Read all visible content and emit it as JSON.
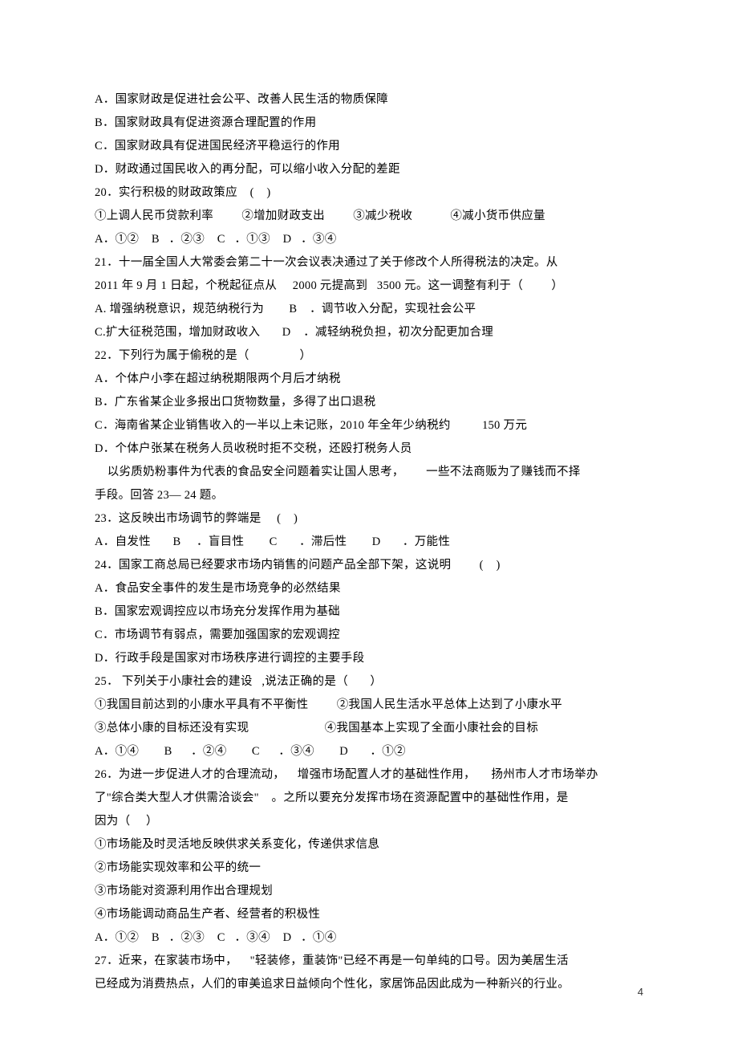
{
  "q19": {
    "A": "A．国家财政是促进社会公平、改善人民生活的物质保障",
    "B": "B．国家财政具有促进资源合理配置的作用",
    "C": "C．国家财政具有促进国民经济平稳运行的作用",
    "D": "D．财政通过国民收入的再分配，可以缩小收入分配的差距"
  },
  "q20": {
    "stem": "20．实行积极的财政政策应    (    )",
    "items": "①上调人民币贷款利率         ②增加财政支出         ③减少税收            ④减小货币供应量",
    "opts": "A．①②    B   ．②③    C   ．①③    D   ．③④"
  },
  "q21": {
    "l1": "21．十一届全国人大常委会第二十一次会议表决通过了关于修改个人所得税法的决定。从",
    "l2": "2011 年 9 月 1 日起，个税起征点从     2000 元提高到   3500 元。这一调整有利于（         ）",
    "l3": "A. 增强纳税意识，规范纳税行为        B    ．调节收入分配，实现社会公平",
    "l4": "C.扩大征税范围，增加财政收入       D    ．减轻纳税负担，初次分配更加合理"
  },
  "q22": {
    "stem": "22．下列行为属于偷税的是（                ）",
    "A": "A．个体户小李在超过纳税期限两个月后才纳税",
    "B": "B．广东省某企业多报出口货物数量，多得了出口退税",
    "C": "C．海南省某企业销售收入的一半以上未记账，2010 年全年少纳税约          150 万元",
    "D": "D．个体户张某在税务人员收税时拒不交税，还殴打税务人员"
  },
  "passage1": {
    "l1": "    以劣质奶粉事件为代表的食品安全问题着实让国人思考，       一些不法商贩为了赚钱而不择",
    "l2": "手段。回答 23— 24 题。"
  },
  "q23": {
    "stem": "23．这反映出市场调节的弊端是     (    )",
    "opts": "A．自发性       B     ．盲目性        C       ．滞后性        D       ．万能性"
  },
  "q24": {
    "stem": "24．国家工商总局已经要求市场内销售的问题产品全部下架，这说明         (    )",
    "A": "A．食品安全事件的发生是市场竞争的必然结果",
    "B": "B．国家宏观调控应以市场充分发挥作用为基础",
    "C": "C．市场调节有弱点，需要加强国家的宏观调控",
    "D": "D．行政手段是国家对市场秩序进行调控的主要手段"
  },
  "q25": {
    "stem": "25． 下列关于小康社会的建设   ,说法正确的是（       ）",
    "l2": "①我国目前达到的小康水平具有不平衡性         ②我国人民生活水平总体上达到了小康水平",
    "l3": "③总体小康的目标还没有实现                        ④我国基本上实现了全面小康社会的目标",
    "opts": "A．①④        B      ．②④        C      ．③④        D       ．①②"
  },
  "q26": {
    "l1": "26．为进一步促进人才的合理流动，    增强市场配置人才的基础性作用，     扬州市人才市场举办",
    "l2": "了\"综合类大型人才供需洽谈会\"    。之所以要充分发挥市场在资源配置中的基础性作用，是",
    "l3": "因为（     ）",
    "i1": "①市场能及时灵活地反映供求关系变化，传递供求信息",
    "i2": "②市场能实现效率和公平的统一",
    "i3": "③市场能对资源利用作出合理规划",
    "i4": "④市场能调动商品生产者、经营者的积极性",
    "opts": "A．①②    B   ．②③    C   ．③④    D   ．①④"
  },
  "q27": {
    "l1": "27．近来，在家装市场中，    \"轻装修，重装饰\"已经不再是一句单纯的口号。因为美居生活",
    "l2": "已经成为消费热点，人们的审美追求日益倾向个性化，家居饰品因此成为一种新兴的行业。"
  },
  "pageNumber": "4"
}
